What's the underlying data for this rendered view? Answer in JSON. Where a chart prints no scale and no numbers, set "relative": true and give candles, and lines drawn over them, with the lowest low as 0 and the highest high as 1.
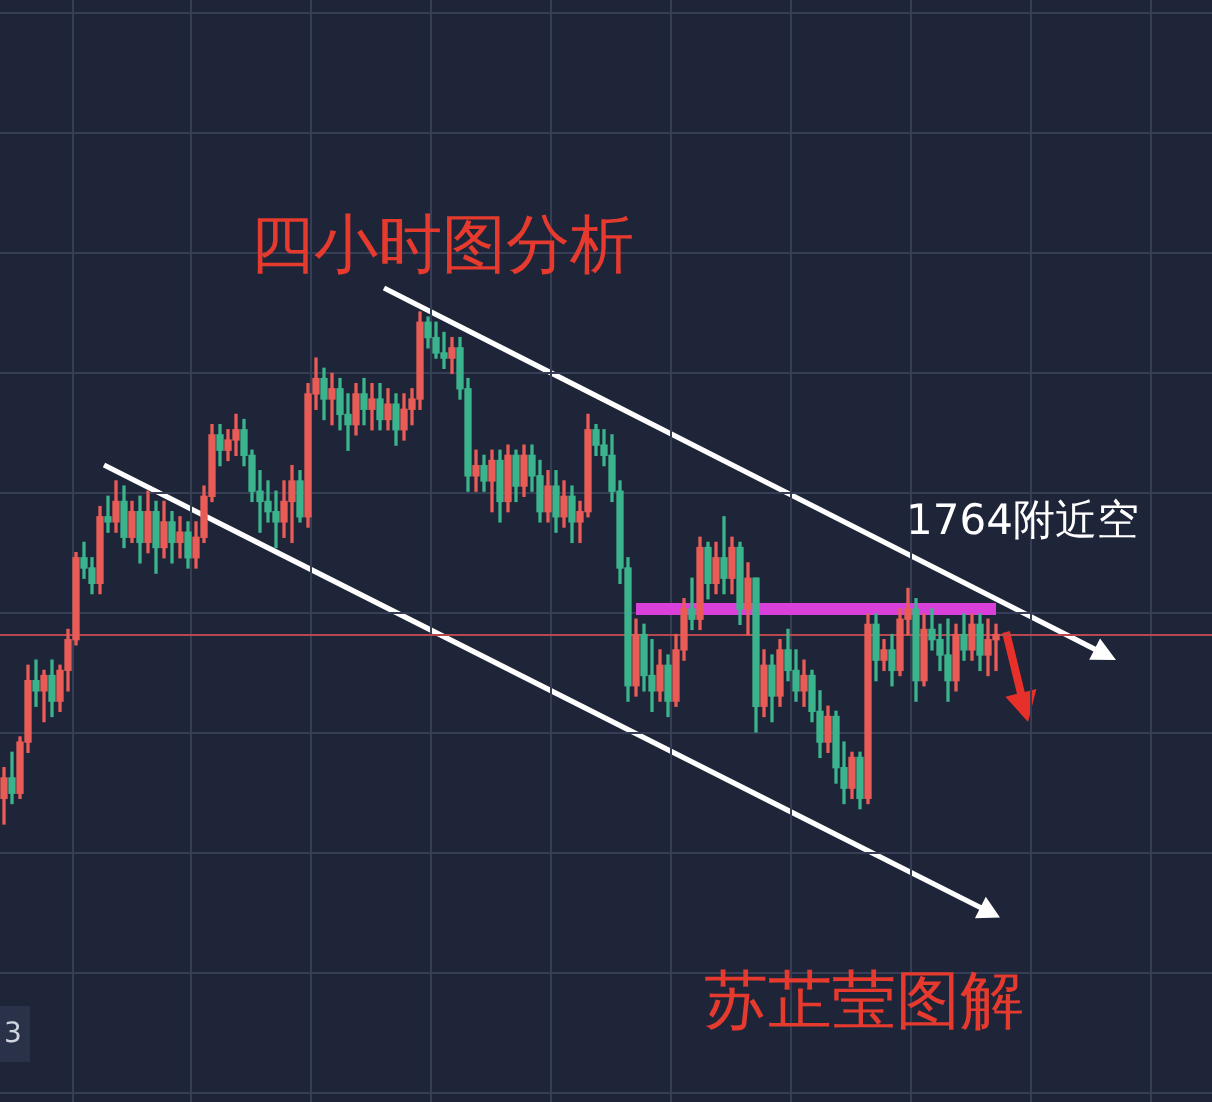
{
  "chart_data": {
    "type": "candlestick",
    "title": "四小时图分析",
    "annotations": [
      "1764附近空",
      "苏芷莹图解",
      "3"
    ],
    "relative": true,
    "grid": true,
    "tick_labels": false,
    "categories": [
      null,
      null,
      null,
      null,
      null,
      null,
      null,
      null,
      null,
      null,
      null,
      null,
      null,
      null,
      null,
      null,
      null,
      null,
      null,
      null,
      null,
      null,
      null,
      null,
      null,
      null,
      null,
      null,
      null,
      null,
      null,
      null,
      null,
      null,
      null,
      null,
      null,
      null,
      null,
      null,
      null,
      null,
      null,
      null,
      null,
      null,
      null,
      null,
      null,
      null,
      null,
      null,
      null,
      null,
      null,
      null,
      null,
      null,
      null,
      null,
      null,
      null,
      null,
      null,
      null,
      null,
      null,
      null,
      null,
      null,
      null,
      null,
      null,
      null,
      null,
      null,
      null,
      null,
      null,
      null,
      null,
      null,
      null,
      null,
      null,
      null,
      null,
      null,
      null,
      null,
      null,
      null,
      null,
      null,
      null,
      null,
      null,
      null,
      null,
      null,
      null,
      null,
      null,
      null,
      null,
      null,
      null,
      null,
      null,
      null,
      null,
      null,
      null,
      null,
      null,
      null,
      null,
      null,
      null,
      null,
      null,
      null,
      null,
      null,
      null
    ],
    "ohlc": [
      [
        0.05,
        0.11,
        0,
        0.09
      ],
      [
        0.09,
        0.14,
        0.04,
        0.06
      ],
      [
        0.06,
        0.17,
        0.05,
        0.16
      ],
      [
        0.16,
        0.31,
        0.14,
        0.28
      ],
      [
        0.28,
        0.32,
        0.23,
        0.26
      ],
      [
        0.26,
        0.3,
        0.2,
        0.29
      ],
      [
        0.29,
        0.32,
        0.21,
        0.24
      ],
      [
        0.24,
        0.31,
        0.22,
        0.3
      ],
      [
        0.3,
        0.38,
        0.26,
        0.36
      ],
      [
        0.36,
        0.53,
        0.35,
        0.52
      ],
      [
        0.52,
        0.55,
        0.48,
        0.5
      ],
      [
        0.5,
        0.52,
        0.45,
        0.47
      ],
      [
        0.47,
        0.62,
        0.45,
        0.6
      ],
      [
        0.6,
        0.64,
        0.57,
        0.59
      ],
      [
        0.59,
        0.67,
        0.57,
        0.63
      ],
      [
        0.63,
        0.66,
        0.54,
        0.56
      ],
      [
        0.56,
        0.63,
        0.55,
        0.61
      ],
      [
        0.61,
        0.64,
        0.51,
        0.55
      ],
      [
        0.55,
        0.65,
        0.53,
        0.61
      ],
      [
        0.61,
        0.63,
        0.49,
        0.54
      ],
      [
        0.54,
        0.63,
        0.52,
        0.59
      ],
      [
        0.59,
        0.61,
        0.51,
        0.55
      ],
      [
        0.55,
        0.6,
        0.52,
        0.57
      ],
      [
        0.57,
        0.59,
        0.5,
        0.52
      ],
      [
        0.52,
        0.59,
        0.5,
        0.56
      ],
      [
        0.56,
        0.66,
        0.55,
        0.64
      ],
      [
        0.64,
        0.78,
        0.63,
        0.76
      ],
      [
        0.76,
        0.78,
        0.7,
        0.73
      ],
      [
        0.73,
        0.77,
        0.71,
        0.75
      ],
      [
        0.75,
        0.8,
        0.72,
        0.77
      ],
      [
        0.77,
        0.79,
        0.7,
        0.72
      ],
      [
        0.72,
        0.73,
        0.63,
        0.65
      ],
      [
        0.65,
        0.69,
        0.57,
        0.63
      ],
      [
        0.63,
        0.67,
        0.59,
        0.61
      ],
      [
        0.61,
        0.65,
        0.54,
        0.59
      ],
      [
        0.59,
        0.67,
        0.56,
        0.63
      ],
      [
        0.63,
        0.7,
        0.55,
        0.67
      ],
      [
        0.67,
        0.69,
        0.59,
        0.6
      ],
      [
        0.6,
        0.86,
        0.58,
        0.84
      ],
      [
        0.84,
        0.91,
        0.81,
        0.87
      ],
      [
        0.87,
        0.89,
        0.79,
        0.83
      ],
      [
        0.83,
        0.88,
        0.78,
        0.85
      ],
      [
        0.85,
        0.87,
        0.77,
        0.8
      ],
      [
        0.8,
        0.84,
        0.73,
        0.78
      ],
      [
        0.78,
        0.86,
        0.76,
        0.84
      ],
      [
        0.84,
        0.87,
        0.78,
        0.81
      ],
      [
        0.81,
        0.86,
        0.77,
        0.83
      ],
      [
        0.83,
        0.86,
        0.77,
        0.79
      ],
      [
        0.79,
        0.85,
        0.77,
        0.82
      ],
      [
        0.82,
        0.84,
        0.74,
        0.77
      ],
      [
        0.77,
        0.84,
        0.75,
        0.81
      ],
      [
        0.81,
        0.85,
        0.78,
        0.83
      ],
      [
        0.83,
        1,
        0.81,
        0.98
      ],
      [
        0.98,
        0.99,
        0.93,
        0.95
      ],
      [
        0.95,
        0.98,
        0.91,
        0.92
      ],
      [
        0.92,
        0.96,
        0.89,
        0.91
      ],
      [
        0.91,
        0.95,
        0.88,
        0.93
      ],
      [
        0.93,
        0.95,
        0.83,
        0.85
      ],
      [
        0.85,
        0.87,
        0.65,
        0.68
      ],
      [
        0.68,
        0.73,
        0.65,
        0.7
      ],
      [
        0.7,
        0.72,
        0.65,
        0.67
      ],
      [
        0.67,
        0.73,
        0.61,
        0.71
      ],
      [
        0.71,
        0.73,
        0.59,
        0.63
      ],
      [
        0.63,
        0.74,
        0.61,
        0.72
      ],
      [
        0.72,
        0.73,
        0.63,
        0.66
      ],
      [
        0.66,
        0.74,
        0.64,
        0.72
      ],
      [
        0.72,
        0.74,
        0.65,
        0.68
      ],
      [
        0.68,
        0.71,
        0.59,
        0.61
      ],
      [
        0.61,
        0.69,
        0.59,
        0.66
      ],
      [
        0.66,
        0.69,
        0.57,
        0.6
      ],
      [
        0.6,
        0.67,
        0.58,
        0.64
      ],
      [
        0.64,
        0.66,
        0.55,
        0.59
      ],
      [
        0.59,
        0.63,
        0.55,
        0.61
      ],
      [
        0.61,
        0.8,
        0.6,
        0.77
      ],
      [
        0.77,
        0.78,
        0.72,
        0.74
      ],
      [
        0.74,
        0.77,
        0.7,
        0.72
      ],
      [
        0.72,
        0.76,
        0.63,
        0.65
      ],
      [
        0.65,
        0.67,
        0.47,
        0.5
      ],
      [
        0.5,
        0.52,
        0.24,
        0.27
      ],
      [
        0.27,
        0.4,
        0.25,
        0.37
      ],
      [
        0.37,
        0.39,
        0.26,
        0.29
      ],
      [
        0.29,
        0.36,
        0.22,
        0.26
      ],
      [
        0.26,
        0.34,
        0.24,
        0.31
      ],
      [
        0.31,
        0.33,
        0.21,
        0.24
      ],
      [
        0.24,
        0.37,
        0.23,
        0.34
      ],
      [
        0.34,
        0.44,
        0.32,
        0.42
      ],
      [
        0.42,
        0.48,
        0.38,
        0.4
      ],
      [
        0.4,
        0.56,
        0.38,
        0.54
      ],
      [
        0.54,
        0.55,
        0.44,
        0.47
      ],
      [
        0.47,
        0.55,
        0.45,
        0.52
      ],
      [
        0.52,
        0.6,
        0.45,
        0.48
      ],
      [
        0.48,
        0.56,
        0.45,
        0.54
      ],
      [
        0.54,
        0.55,
        0.39,
        0.42
      ],
      [
        0.42,
        0.51,
        0.37,
        0.48
      ],
      [
        0.48,
        0.48,
        0.18,
        0.23
      ],
      [
        0.23,
        0.34,
        0.21,
        0.31
      ],
      [
        0.31,
        0.33,
        0.2,
        0.25
      ],
      [
        0.25,
        0.36,
        0.23,
        0.34
      ],
      [
        0.34,
        0.38,
        0.28,
        0.3
      ],
      [
        0.3,
        0.34,
        0.24,
        0.26
      ],
      [
        0.26,
        0.32,
        0.23,
        0.29
      ],
      [
        0.29,
        0.3,
        0.2,
        0.22
      ],
      [
        0.22,
        0.26,
        0.13,
        0.16
      ],
      [
        0.16,
        0.23,
        0.14,
        0.21
      ],
      [
        0.21,
        0.22,
        0.08,
        0.11
      ],
      [
        0.11,
        0.16,
        0.04,
        0.07
      ],
      [
        0.07,
        0.14,
        0.05,
        0.13
      ],
      [
        0.13,
        0.14,
        0.03,
        0.05
      ],
      [
        0.05,
        0.41,
        0.04,
        0.39
      ],
      [
        0.39,
        0.41,
        0.28,
        0.32
      ],
      [
        0.32,
        0.36,
        0.3,
        0.34
      ],
      [
        0.34,
        0.37,
        0.27,
        0.3
      ],
      [
        0.3,
        0.42,
        0.29,
        0.4
      ],
      [
        0.4,
        0.46,
        0.37,
        0.42
      ],
      [
        0.42,
        0.44,
        0.24,
        0.28
      ],
      [
        0.28,
        0.41,
        0.27,
        0.38
      ],
      [
        0.38,
        0.42,
        0.34,
        0.36
      ],
      [
        0.36,
        0.39,
        0.3,
        0.33
      ],
      [
        0.33,
        0.4,
        0.24,
        0.28
      ],
      [
        0.28,
        0.39,
        0.26,
        0.37
      ],
      [
        0.37,
        0.41,
        0.32,
        0.34
      ],
      [
        0.34,
        0.41,
        0.32,
        0.39
      ],
      [
        0.39,
        0.41,
        0.3,
        0.33
      ],
      [
        0.33,
        0.4,
        0.29,
        0.36
      ],
      [
        0.36,
        0.39,
        0.3,
        0.37
      ]
    ],
    "series": [
      {
        "type": "line",
        "color": "#d93fd9",
        "values": [
          null,
          null,
          null,
          null,
          null,
          null,
          null,
          null,
          null,
          null,
          null,
          null,
          null,
          null,
          null,
          null,
          null,
          null,
          null,
          null,
          null,
          null,
          null,
          null,
          null,
          null,
          null,
          null,
          null,
          null,
          null,
          null,
          null,
          null,
          null,
          null,
          null,
          null,
          null,
          null,
          null,
          null,
          null,
          null,
          null,
          null,
          null,
          null,
          null,
          null,
          null,
          null,
          null,
          null,
          null,
          null,
          null,
          null,
          null,
          null,
          null,
          null,
          null,
          null,
          null,
          null,
          null,
          null,
          null,
          null,
          null,
          null,
          null,
          null,
          null,
          null,
          null,
          null,
          null,
          0.42,
          0.42,
          0.42,
          0.42,
          0.42,
          0.42,
          0.42,
          0.42,
          0.42,
          0.42,
          0.42,
          0.42,
          0.42,
          0.42,
          0.42,
          0.42,
          0.42,
          0.42,
          0.42,
          0.42,
          0.42,
          0.42,
          0.42,
          0.42,
          0.42,
          0.42,
          0.42,
          0.42,
          0.42,
          0.42,
          0.42,
          0.42,
          0.42,
          0.42,
          0.42,
          0.42,
          0.42,
          0.42,
          0.42,
          0.42,
          0.42,
          0.42,
          0.42,
          0.42,
          0.42,
          0.42
        ]
      }
    ],
    "ref_lines": [
      {
        "axis": "y",
        "value": 0.37,
        "color": "#b9484e"
      }
    ]
  }
}
